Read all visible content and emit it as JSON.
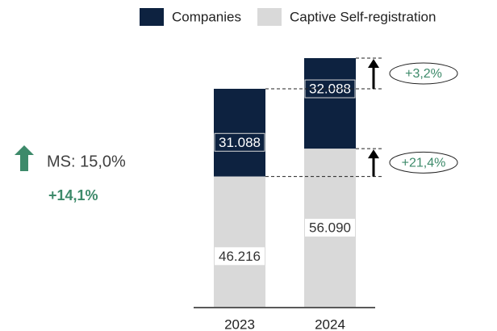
{
  "chart_data": {
    "type": "stacked_bar",
    "categories": [
      "2023",
      "2024"
    ],
    "series": [
      {
        "name": "Companies",
        "color": "#0d2240",
        "values": [
          31088,
          32088
        ],
        "value_labels": [
          "31.088",
          "32.088"
        ]
      },
      {
        "name": "Captive Self-registration",
        "color": "#d9d9d9",
        "values": [
          46216,
          56090
        ],
        "value_labels": [
          "46.216",
          "56.090"
        ]
      }
    ],
    "annotations": {
      "market_share": "MS: 15,0%",
      "total_growth": "+14,1%",
      "companies_growth": "+3,2%",
      "captive_growth": "+21,4%"
    }
  }
}
